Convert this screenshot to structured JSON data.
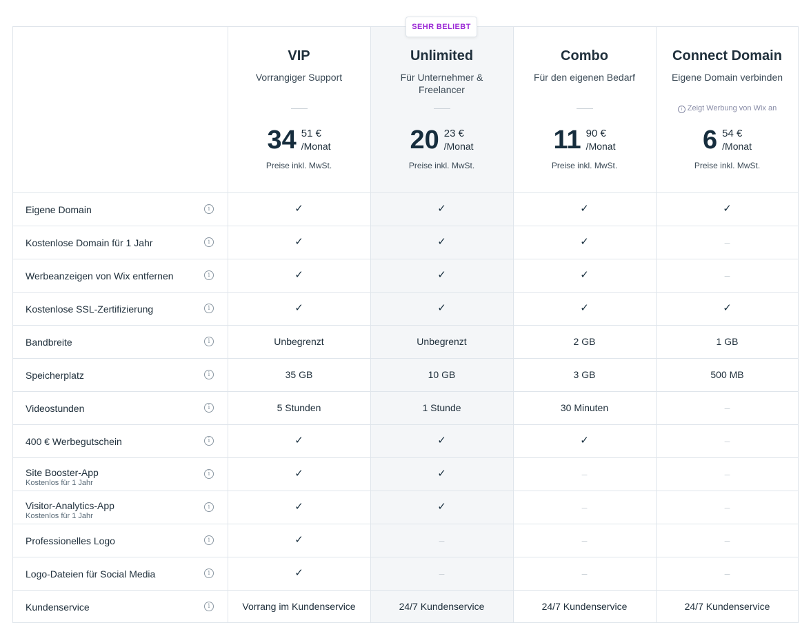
{
  "badge": "SEHR BELIEBT",
  "plans": [
    {
      "name": "VIP",
      "subtitle": "Vorrangiger Support",
      "ads_note": "",
      "price_whole": "34",
      "price_cents": "51 €",
      "period": "/Monat",
      "price_note": "Preise inkl. MwSt."
    },
    {
      "name": "Unlimited",
      "subtitle": "Für Unternehmer & Freelancer",
      "ads_note": "",
      "price_whole": "20",
      "price_cents": "23 €",
      "period": "/Monat",
      "price_note": "Preise inkl. MwSt."
    },
    {
      "name": "Combo",
      "subtitle": "Für den eigenen Bedarf",
      "ads_note": "",
      "price_whole": "11",
      "price_cents": "90 €",
      "period": "/Monat",
      "price_note": "Preise inkl. MwSt."
    },
    {
      "name": "Connect Domain",
      "subtitle": "Eigene Domain verbinden",
      "ads_note": "Zeigt Werbung von Wix an",
      "price_whole": "6",
      "price_cents": "54 €",
      "period": "/Monat",
      "price_note": "Preise inkl. MwSt."
    }
  ],
  "symbols": {
    "check": "✓",
    "none": "–",
    "info": "i"
  },
  "features": [
    {
      "label": "Eigene Domain",
      "sub": "",
      "values": [
        "check",
        "check",
        "check",
        "check"
      ]
    },
    {
      "label": "Kostenlose Domain für 1 Jahr",
      "sub": "",
      "values": [
        "check",
        "check",
        "check",
        "none"
      ]
    },
    {
      "label": "Werbeanzeigen von Wix entfernen",
      "sub": "",
      "values": [
        "check",
        "check",
        "check",
        "none"
      ]
    },
    {
      "label": "Kostenlose SSL-Zertifizierung",
      "sub": "",
      "values": [
        "check",
        "check",
        "check",
        "check"
      ]
    },
    {
      "label": "Bandbreite",
      "sub": "",
      "values": [
        "Unbegrenzt",
        "Unbegrenzt",
        "2 GB",
        "1 GB"
      ]
    },
    {
      "label": "Speicherplatz",
      "sub": "",
      "values": [
        "35 GB",
        "10 GB",
        "3 GB",
        "500 MB"
      ]
    },
    {
      "label": "Videostunden",
      "sub": "",
      "values": [
        "5 Stunden",
        "1 Stunde",
        "30 Minuten",
        "none"
      ]
    },
    {
      "label": "400 € Werbegutschein",
      "sub": "",
      "values": [
        "check",
        "check",
        "check",
        "none"
      ]
    },
    {
      "label": "Site Booster-App",
      "sub": "Kostenlos für 1 Jahr",
      "values": [
        "check",
        "check",
        "none",
        "none"
      ]
    },
    {
      "label": "Visitor-Analytics-App",
      "sub": "Kostenlos für 1 Jahr",
      "values": [
        "check",
        "check",
        "none",
        "none"
      ]
    },
    {
      "label": "Professionelles Logo",
      "sub": "",
      "values": [
        "check",
        "none",
        "none",
        "none"
      ]
    },
    {
      "label": "Logo-Dateien für Social Media",
      "sub": "",
      "values": [
        "check",
        "none",
        "none",
        "none"
      ]
    },
    {
      "label": "Kundenservice",
      "sub": "",
      "values": [
        "Vorrang im Kundenservice",
        "24/7 Kundenservice",
        "24/7 Kundenservice",
        "24/7 Kundenservice"
      ]
    }
  ]
}
